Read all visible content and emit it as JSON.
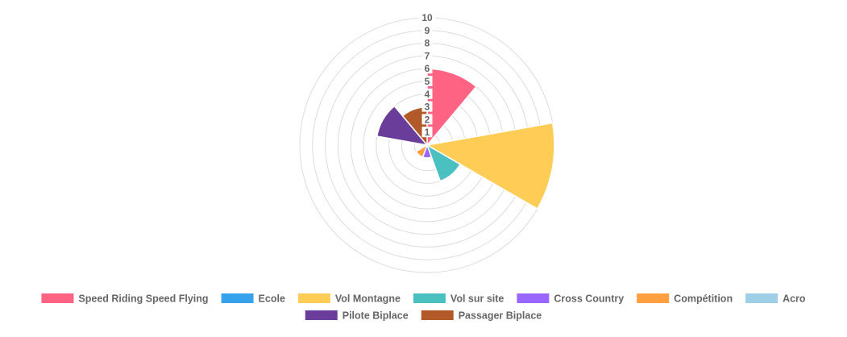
{
  "chart_data": {
    "type": "polarArea",
    "title": "",
    "categories": [
      "Speed Riding Speed Flying",
      "Ecole",
      "Vol Montagne",
      "Vol sur site",
      "Cross Country",
      "Compétition",
      "Acro",
      "Pilote Biplace",
      "Passager Biplace"
    ],
    "values": [
      6,
      0,
      10,
      3,
      1,
      1,
      0,
      4,
      3
    ],
    "colors": [
      "#ff6384",
      "#36a2eb",
      "#ffcd56",
      "#4bc0c0",
      "#9966ff",
      "#ff9f40",
      "#9fcfe6",
      "#6a3d9a",
      "#b15928"
    ],
    "r_ticks": [
      "1",
      "2",
      "3",
      "4",
      "5",
      "6",
      "7",
      "8",
      "9",
      "10"
    ],
    "r_range": [
      0,
      10
    ],
    "grid": true,
    "legend_position": "bottom"
  }
}
